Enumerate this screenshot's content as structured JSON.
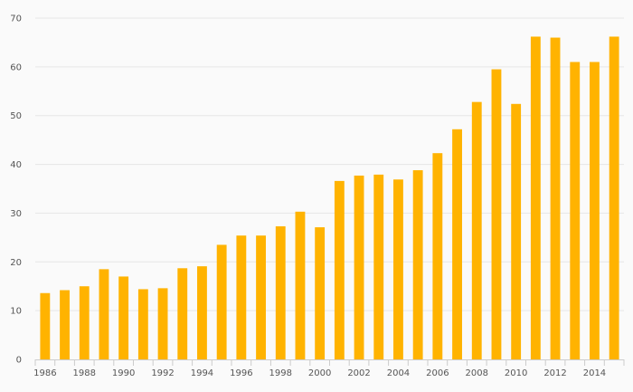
{
  "chart_data": {
    "type": "bar",
    "categories": [
      "1986",
      "1987",
      "1988",
      "1989",
      "1990",
      "1991",
      "1992",
      "1993",
      "1994",
      "1995",
      "1996",
      "1997",
      "1998",
      "1999",
      "2000",
      "2001",
      "2002",
      "2003",
      "2004",
      "2005",
      "2006",
      "2007",
      "2008",
      "2009",
      "2010",
      "2011",
      "2012",
      "2013",
      "2014",
      "2015"
    ],
    "x_tick_labels": [
      "1986",
      "1988",
      "1990",
      "1992",
      "1994",
      "1996",
      "1998",
      "2000",
      "2002",
      "2004",
      "2006",
      "2008",
      "2010",
      "2012",
      "2014"
    ],
    "values": [
      13.6,
      14.2,
      15.0,
      18.5,
      17.0,
      14.4,
      14.6,
      18.7,
      19.1,
      23.5,
      25.4,
      25.4,
      27.3,
      30.3,
      27.1,
      36.6,
      37.7,
      37.9,
      36.9,
      38.8,
      42.3,
      47.2,
      52.8,
      59.5,
      52.4,
      66.2,
      66.0,
      61.0,
      61.0,
      66.2
    ],
    "y_tick_labels": [
      "0",
      "10",
      "20",
      "30",
      "40",
      "50",
      "60",
      "70"
    ],
    "ylim": [
      0,
      70
    ],
    "grid": true,
    "bar_color": "#FFB300"
  }
}
